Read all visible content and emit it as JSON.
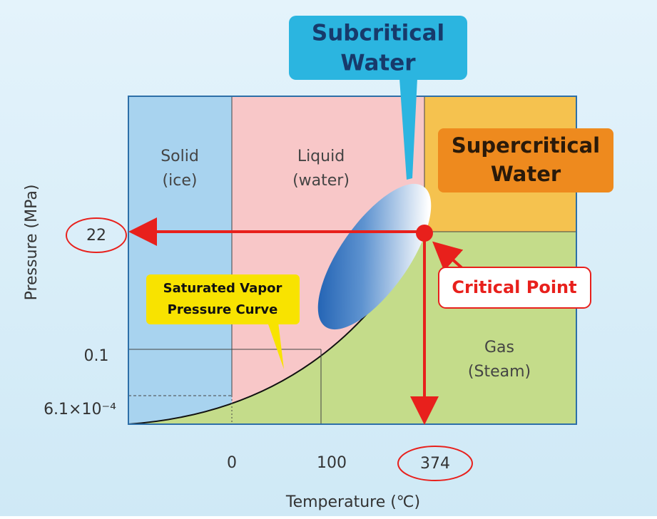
{
  "y_axis": {
    "label": "Pressure (MPa)",
    "ticks": [
      "22",
      "0.1",
      "6.1×10⁻⁴"
    ]
  },
  "x_axis": {
    "label": "Temperature (℃)",
    "ticks": [
      "0",
      "100",
      "374"
    ]
  },
  "regions": {
    "solid": [
      "Solid",
      "(ice)"
    ],
    "liquid": [
      "Liquid",
      "(water)"
    ],
    "gas": [
      "Gas",
      "(Steam)"
    ]
  },
  "callouts": {
    "subcritical": [
      "Subcritical",
      "Water"
    ],
    "supercritical": [
      "Supercritical",
      "Water"
    ],
    "critical_point": "Critical Point",
    "curve": [
      "Saturated Vapor",
      "Pressure Curve"
    ]
  }
}
